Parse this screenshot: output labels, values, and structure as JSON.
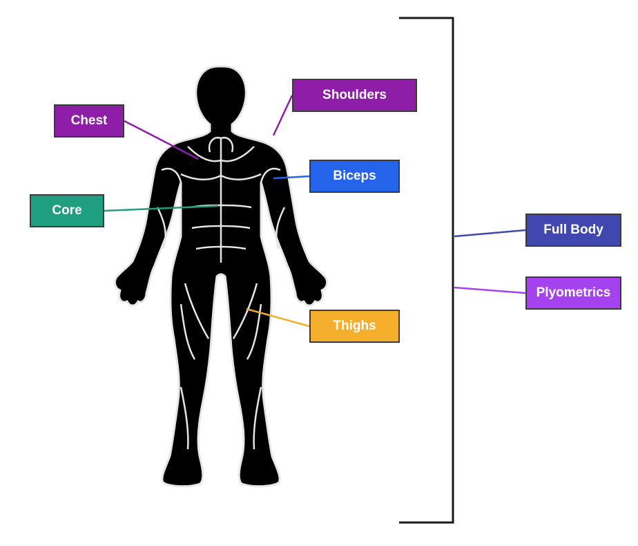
{
  "labels": {
    "chest": {
      "text": "Chest",
      "color": "#8e1ea8"
    },
    "shoulders": {
      "text": "Shoulders",
      "color": "#8e1ea8"
    },
    "biceps": {
      "text": "Biceps",
      "color": "#2563eb"
    },
    "core": {
      "text": "Core",
      "color": "#1f9e80"
    },
    "thighs": {
      "text": "Thighs",
      "color": "#f6ae2d"
    },
    "full_body": {
      "text": "Full Body",
      "color": "#4048b0"
    },
    "plyometrics": {
      "text": "Plyometrics",
      "color": "#a442f0"
    }
  },
  "figure": {
    "icon": "human-muscle-figure-icon",
    "color": "#000000"
  },
  "bracket": {
    "color": "#1a1a1a"
  }
}
